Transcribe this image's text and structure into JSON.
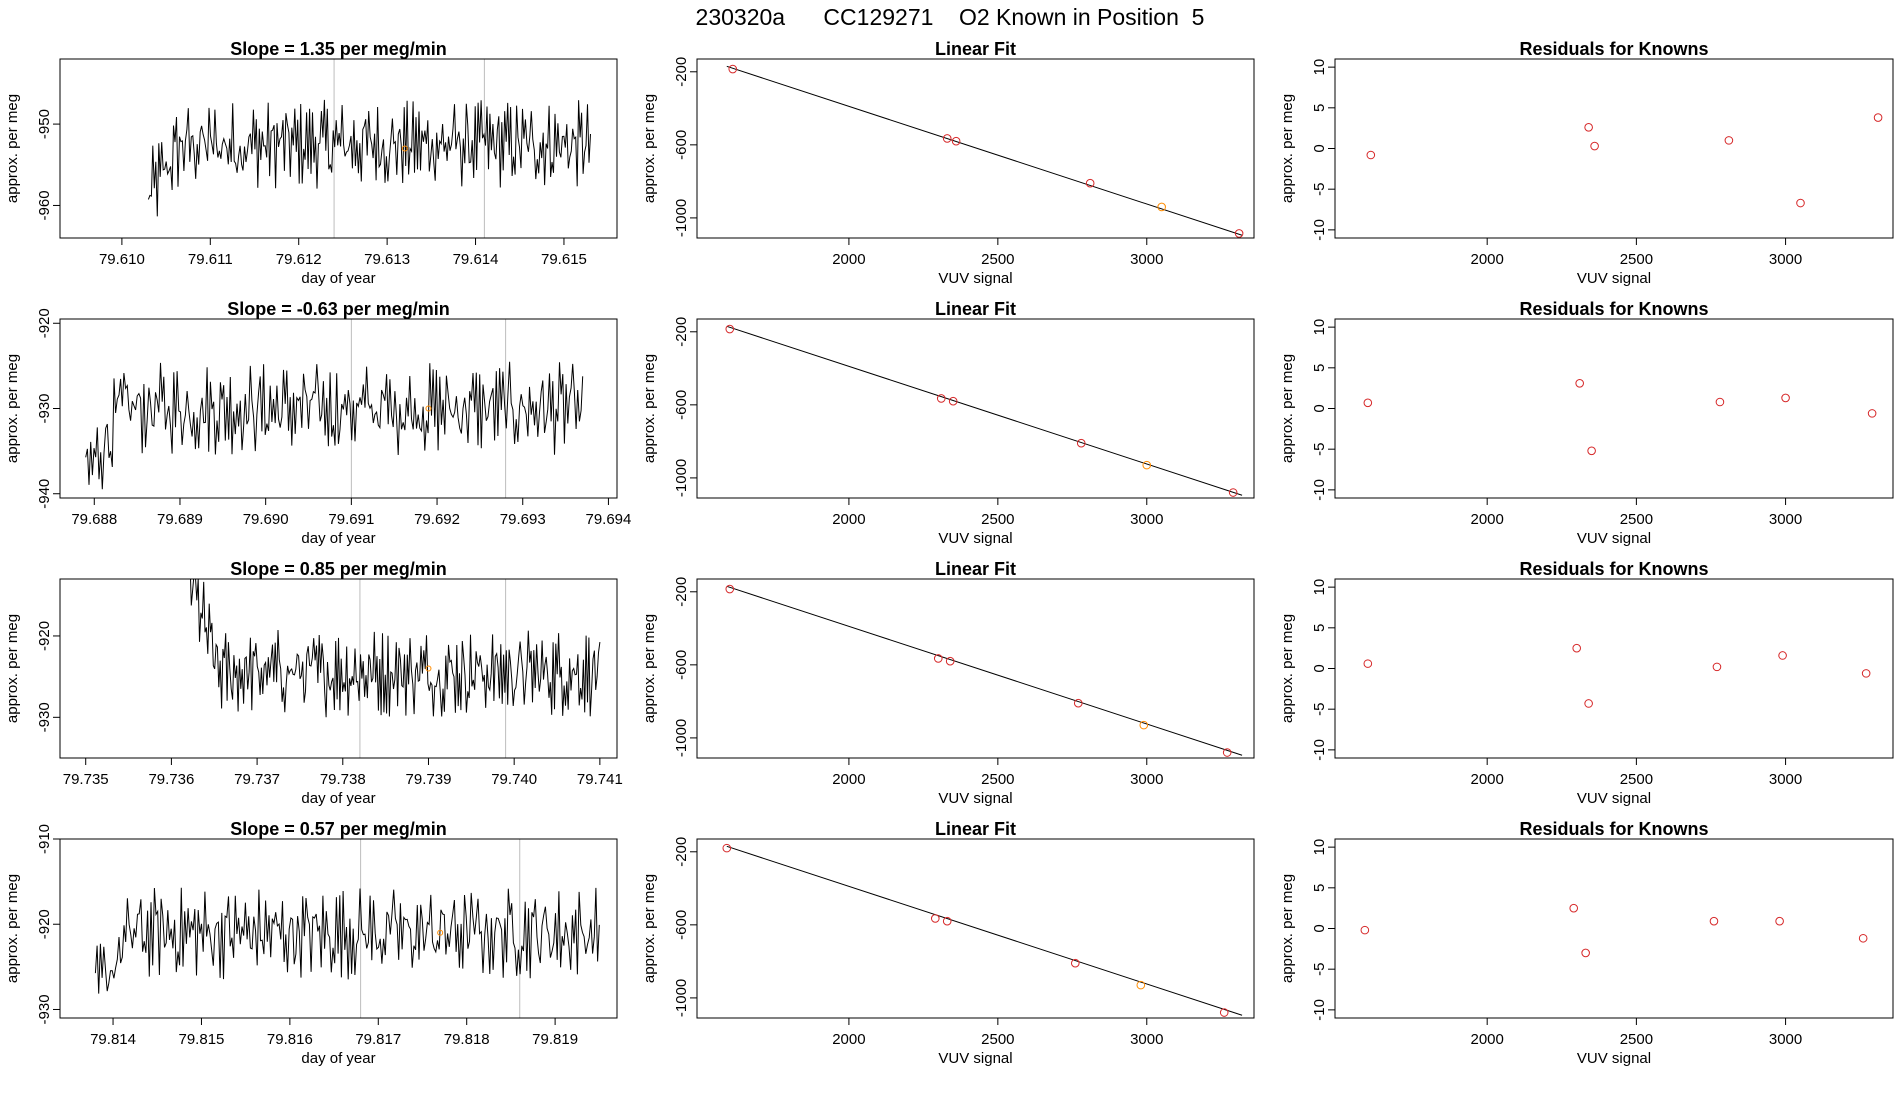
{
  "figure_title": "230320a      CC129271    O2 Known in Position  5",
  "colors": {
    "frame": "#000000",
    "trace": "#000000",
    "vline": "#bdbdbd",
    "point": "#d62728",
    "highlight": "#ff8c00"
  },
  "rows": [
    {
      "ts": {
        "title": "Slope =  1.35  per meg/min",
        "xlabel": "day of year",
        "ylabel": "approx. per meg",
        "xlim": [
          79.6093,
          79.6156
        ],
        "ylim": [
          -964,
          -942
        ],
        "xticks": [
          79.61,
          79.611,
          79.612,
          79.613,
          79.614,
          79.615
        ],
        "xtick_labels": [
          "79.610",
          "79.611",
          "79.612",
          "79.613",
          "79.614",
          "79.615"
        ],
        "yticks": [
          -950,
          -960
        ],
        "ytick_labels": [
          "-950",
          "-960"
        ],
        "vlines": [
          79.6124,
          79.6141
        ],
        "start": 79.6103,
        "end": 79.6153,
        "level": -952.5,
        "offset": -6.5,
        "marker": [
          79.6132,
          -953
        ]
      },
      "fit": {
        "title": "Linear Fit",
        "xlabel": "VUV signal",
        "ylabel": "approx. per meg",
        "xlim": [
          1490,
          3360
        ],
        "ylim": [
          -1110,
          -130
        ],
        "xticks": [
          2000,
          2500,
          3000
        ],
        "xtick_labels": [
          "2000",
          "2500",
          "3000"
        ],
        "yticks": [
          -200,
          -600,
          -1000
        ],
        "ytick_labels": [
          "-200",
          "-600",
          "-1000"
        ],
        "line": [
          [
            1590,
            -170
          ],
          [
            3320,
            -1095
          ]
        ],
        "points": [
          [
            1610,
            -185
          ],
          [
            2330,
            -565
          ],
          [
            2360,
            -580
          ],
          [
            2810,
            -810
          ],
          [
            3050,
            -940
          ],
          [
            3310,
            -1085
          ]
        ],
        "highlight_index": 4
      },
      "res": {
        "title": "Residuals for Knowns",
        "xlabel": "VUV signal",
        "ylabel": "approx. per meg",
        "xlim": [
          1490,
          3360
        ],
        "ylim": [
          -11,
          11
        ],
        "xticks": [
          2000,
          2500,
          3000
        ],
        "xtick_labels": [
          "2000",
          "2500",
          "3000"
        ],
        "yticks": [
          10,
          5,
          0,
          -5,
          -10
        ],
        "ytick_labels": [
          "10",
          "5",
          "0",
          "-5",
          "-10"
        ],
        "points": [
          [
            1610,
            -0.8
          ],
          [
            2340,
            2.6
          ],
          [
            2360,
            0.3
          ],
          [
            2810,
            1.0
          ],
          [
            3050,
            -6.7
          ],
          [
            3310,
            3.8
          ]
        ]
      }
    },
    {
      "ts": {
        "title": "Slope =  -0.63  per meg/min",
        "xlabel": "day of year",
        "ylabel": "approx. per meg",
        "xlim": [
          79.6876,
          79.6941
        ],
        "ylim": [
          -940.5,
          -919.5
        ],
        "xticks": [
          79.688,
          79.689,
          79.69,
          79.691,
          79.692,
          79.693,
          79.694
        ],
        "xtick_labels": [
          "79.688",
          "79.689",
          "79.690",
          "79.691",
          "79.692",
          "79.693",
          "79.694"
        ],
        "yticks": [
          -920,
          -930,
          -940
        ],
        "ytick_labels": [
          "-920",
          "-930",
          "-940"
        ],
        "vlines": [
          79.691,
          79.6928
        ],
        "start": 79.6879,
        "end": 79.6937,
        "level": -930,
        "offset": -8,
        "marker": [
          79.6919,
          -930
        ]
      },
      "fit": {
        "title": "Linear Fit",
        "xlabel": "VUV signal",
        "ylabel": "approx. per meg",
        "xlim": [
          1490,
          3360
        ],
        "ylim": [
          -1110,
          -130
        ],
        "xticks": [
          2000,
          2500,
          3000
        ],
        "xtick_labels": [
          "2000",
          "2500",
          "3000"
        ],
        "yticks": [
          -200,
          -600,
          -1000
        ],
        "ytick_labels": [
          "-200",
          "-600",
          "-1000"
        ],
        "line": [
          [
            1590,
            -170
          ],
          [
            3320,
            -1095
          ]
        ],
        "points": [
          [
            1600,
            -185
          ],
          [
            2310,
            -565
          ],
          [
            2350,
            -580
          ],
          [
            2780,
            -810
          ],
          [
            3000,
            -930
          ],
          [
            3290,
            -1080
          ]
        ],
        "highlight_index": 4
      },
      "res": {
        "title": "Residuals for Knowns",
        "xlabel": "VUV signal",
        "ylabel": "approx. per meg",
        "xlim": [
          1490,
          3360
        ],
        "ylim": [
          -11,
          11
        ],
        "xticks": [
          2000,
          2500,
          3000
        ],
        "xtick_labels": [
          "2000",
          "2500",
          "3000"
        ],
        "points": [
          [
            1600,
            0.7
          ],
          [
            2310,
            3.1
          ],
          [
            2350,
            -5.2
          ],
          [
            2780,
            0.8
          ],
          [
            3000,
            1.3
          ],
          [
            3290,
            -0.6
          ]
        ],
        "yticks": [
          10,
          5,
          0,
          -5,
          -10
        ],
        "ytick_labels": [
          "10",
          "5",
          "0",
          "-5",
          "-10"
        ]
      }
    },
    {
      "ts": {
        "title": "Slope =  0.85  per meg/min",
        "xlabel": "day of year",
        "ylabel": "approx. per meg",
        "xlim": [
          79.7347,
          79.7412
        ],
        "ylim": [
          -935,
          -913
        ],
        "xticks": [
          79.735,
          79.736,
          79.737,
          79.738,
          79.739,
          79.74,
          79.741
        ],
        "xtick_labels": [
          "79.735",
          "79.736",
          "79.737",
          "79.738",
          "79.739",
          "79.740",
          "79.741"
        ],
        "yticks": [
          -920,
          -930
        ],
        "ytick_labels": [
          "-920",
          "-930"
        ],
        "vlines": [
          79.7382,
          79.7399
        ],
        "start": 79.7362,
        "end": 79.741,
        "level": -924.5,
        "offset": 12,
        "marker": [
          79.739,
          -924
        ]
      },
      "fit": {
        "title": "Linear Fit",
        "xlabel": "VUV signal",
        "ylabel": "approx. per meg",
        "xlim": [
          1490,
          3360
        ],
        "ylim": [
          -1110,
          -130
        ],
        "xticks": [
          2000,
          2500,
          3000
        ],
        "xtick_labels": [
          "2000",
          "2500",
          "3000"
        ],
        "yticks": [
          -200,
          -600,
          -1000
        ],
        "ytick_labels": [
          "-200",
          "-600",
          "-1000"
        ],
        "line": [
          [
            1590,
            -170
          ],
          [
            3320,
            -1095
          ]
        ],
        "points": [
          [
            1600,
            -185
          ],
          [
            2300,
            -565
          ],
          [
            2340,
            -580
          ],
          [
            2770,
            -810
          ],
          [
            2990,
            -930
          ],
          [
            3270,
            -1080
          ]
        ],
        "highlight_index": 4
      },
      "res": {
        "title": "Residuals for Knowns",
        "xlabel": "VUV signal",
        "ylabel": "approx. per meg",
        "xlim": [
          1490,
          3360
        ],
        "ylim": [
          -11,
          11
        ],
        "xticks": [
          2000,
          2500,
          3000
        ],
        "xtick_labels": [
          "2000",
          "2500",
          "3000"
        ],
        "yticks": [
          10,
          5,
          0,
          -5,
          -10
        ],
        "ytick_labels": [
          "10",
          "5",
          "0",
          "-5",
          "-10"
        ],
        "points": [
          [
            1600,
            0.6
          ],
          [
            2300,
            2.5
          ],
          [
            2340,
            -4.3
          ],
          [
            2770,
            0.2
          ],
          [
            2990,
            1.6
          ],
          [
            3270,
            -0.6
          ]
        ]
      }
    },
    {
      "ts": {
        "title": "Slope =  0.57  per meg/min",
        "xlabel": "day of year",
        "ylabel": "approx. per meg",
        "xlim": [
          79.8134,
          79.8197
        ],
        "ylim": [
          -931,
          -910
        ],
        "xticks": [
          79.814,
          79.815,
          79.816,
          79.817,
          79.818,
          79.819
        ],
        "xtick_labels": [
          "79.814",
          "79.815",
          "79.816",
          "79.817",
          "79.818",
          "79.819"
        ],
        "yticks": [
          -910,
          -920,
          -930
        ],
        "ytick_labels": [
          "-910",
          "-920",
          "-930"
        ],
        "vlines": [
          79.8168,
          79.8186
        ],
        "start": 79.8138,
        "end": 79.8195,
        "level": -921,
        "offset": -7,
        "marker": [
          79.8177,
          -921
        ]
      },
      "fit": {
        "title": "Linear Fit",
        "xlabel": "VUV signal",
        "ylabel": "approx. per meg",
        "xlim": [
          1490,
          3360
        ],
        "ylim": [
          -1110,
          -130
        ],
        "xticks": [
          2000,
          2500,
          3000
        ],
        "xtick_labels": [
          "2000",
          "2500",
          "3000"
        ],
        "yticks": [
          -200,
          -600,
          -1000
        ],
        "ytick_labels": [
          "-200",
          "-600",
          "-1000"
        ],
        "line": [
          [
            1590,
            -170
          ],
          [
            3320,
            -1095
          ]
        ],
        "points": [
          [
            1590,
            -180
          ],
          [
            2290,
            -565
          ],
          [
            2330,
            -580
          ],
          [
            2760,
            -810
          ],
          [
            2980,
            -930
          ],
          [
            3260,
            -1080
          ]
        ],
        "highlight_index": 4
      },
      "res": {
        "title": "Residuals for Knowns",
        "xlabel": "VUV signal",
        "ylabel": "approx. per meg",
        "xlim": [
          1490,
          3360
        ],
        "ylim": [
          -11,
          11
        ],
        "xticks": [
          2000,
          2500,
          3000
        ],
        "xtick_labels": [
          "2000",
          "2500",
          "3000"
        ],
        "yticks": [
          10,
          5,
          0,
          -5,
          -10
        ],
        "ytick_labels": [
          "10",
          "5",
          "0",
          "-5",
          "-10"
        ],
        "points": [
          [
            1590,
            -0.2
          ],
          [
            2290,
            2.5
          ],
          [
            2330,
            -3.0
          ],
          [
            2760,
            0.9
          ],
          [
            2980,
            0.9
          ],
          [
            3260,
            -1.2
          ]
        ]
      }
    }
  ]
}
